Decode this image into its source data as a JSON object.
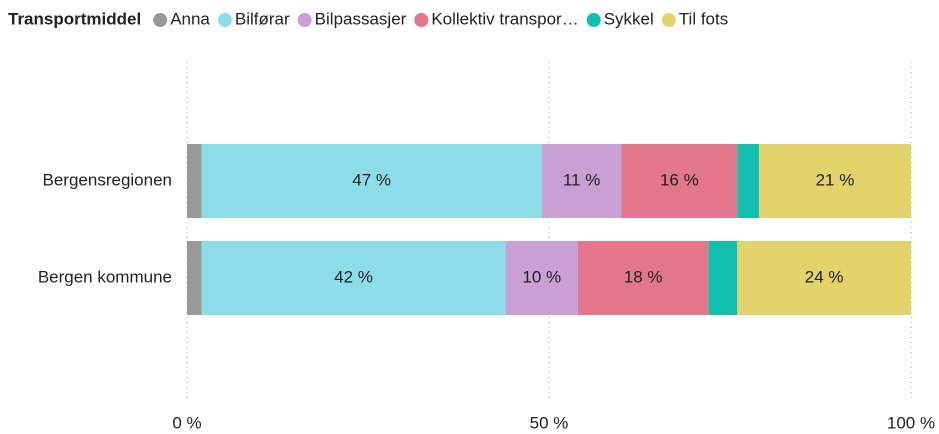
{
  "chart_data": {
    "type": "stacked-bar-horizontal",
    "legend_title": "Transportmiddel",
    "categories": [
      "Bergensregionen",
      "Bergen kommune"
    ],
    "series": [
      {
        "name": "Anna",
        "color": "#999999",
        "values": [
          2,
          2
        ],
        "value_labels": [
          null,
          null
        ]
      },
      {
        "name": "Bilførar",
        "color": "#8ddcea",
        "values": [
          47,
          42
        ],
        "value_labels": [
          "47 %",
          "42 %"
        ]
      },
      {
        "name": "Bilpassasjer",
        "color": "#c9a0d6",
        "values": [
          11,
          10
        ],
        "value_labels": [
          "11 %",
          "10 %"
        ]
      },
      {
        "name": "Kollektiv transpor…",
        "color": "#e3768c",
        "values": [
          16,
          18
        ],
        "value_labels": [
          "16 %",
          "18 %"
        ]
      },
      {
        "name": "Sykkel",
        "color": "#12bfae",
        "values": [
          3,
          4
        ],
        "value_labels": [
          null,
          null
        ]
      },
      {
        "name": "Til fots",
        "color": "#e2d36b",
        "values": [
          21,
          24
        ],
        "value_labels": [
          "21 %",
          "24 %"
        ]
      }
    ],
    "xlim": [
      0,
      100
    ],
    "xticks": [
      {
        "value": 0,
        "label": "0 %"
      },
      {
        "value": 50,
        "label": "50 %"
      },
      {
        "value": 100,
        "label": "100 %"
      }
    ],
    "grid": true,
    "legend": "top"
  }
}
